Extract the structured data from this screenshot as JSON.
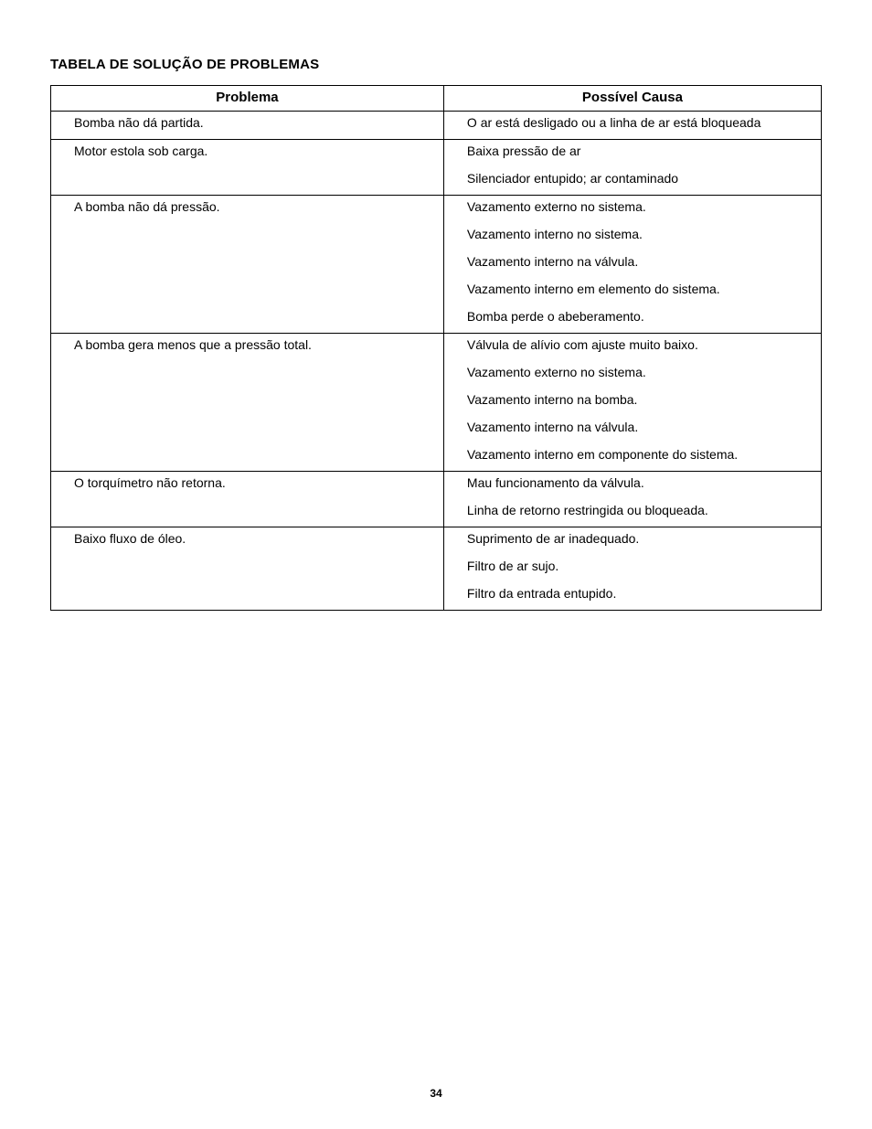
{
  "title": "TABELA DE SOLUÇÃO DE PROBLEMAS",
  "page_number": "34",
  "table": {
    "columns": {
      "problem": "Problema",
      "cause": "Possível Causa"
    },
    "groups": [
      {
        "problem": "Bomba não dá partida.",
        "causes": [
          "O ar está desligado ou a linha de ar está bloqueada"
        ]
      },
      {
        "problem": "Motor estola sob carga.",
        "causes": [
          "Baixa pressão de ar",
          "Silenciador entupido; ar contaminado"
        ]
      },
      {
        "problem": "A bomba não dá pressão.",
        "causes": [
          "Vazamento externo no sistema.",
          "Vazamento interno no sistema.",
          "Vazamento interno na válvula.",
          "Vazamento interno em elemento do sistema.",
          "Bomba perde o abeberamento."
        ]
      },
      {
        "problem": "A bomba gera menos que a pressão total.",
        "causes": [
          "Válvula de alívio com ajuste muito baixo.",
          "Vazamento externo no sistema.",
          "Vazamento interno na bomba.",
          "Vazamento interno na válvula.",
          "Vazamento interno em componente do sistema."
        ]
      },
      {
        "problem": "O torquímetro não retorna.",
        "causes": [
          "Mau funcionamento da válvula.",
          "Linha de retorno restringida ou bloqueada."
        ]
      },
      {
        "problem": "Baixo fluxo de óleo.",
        "causes": [
          "Suprimento de ar inadequado.",
          "Filtro de ar sujo.",
          "Filtro da entrada entupido."
        ]
      }
    ]
  }
}
